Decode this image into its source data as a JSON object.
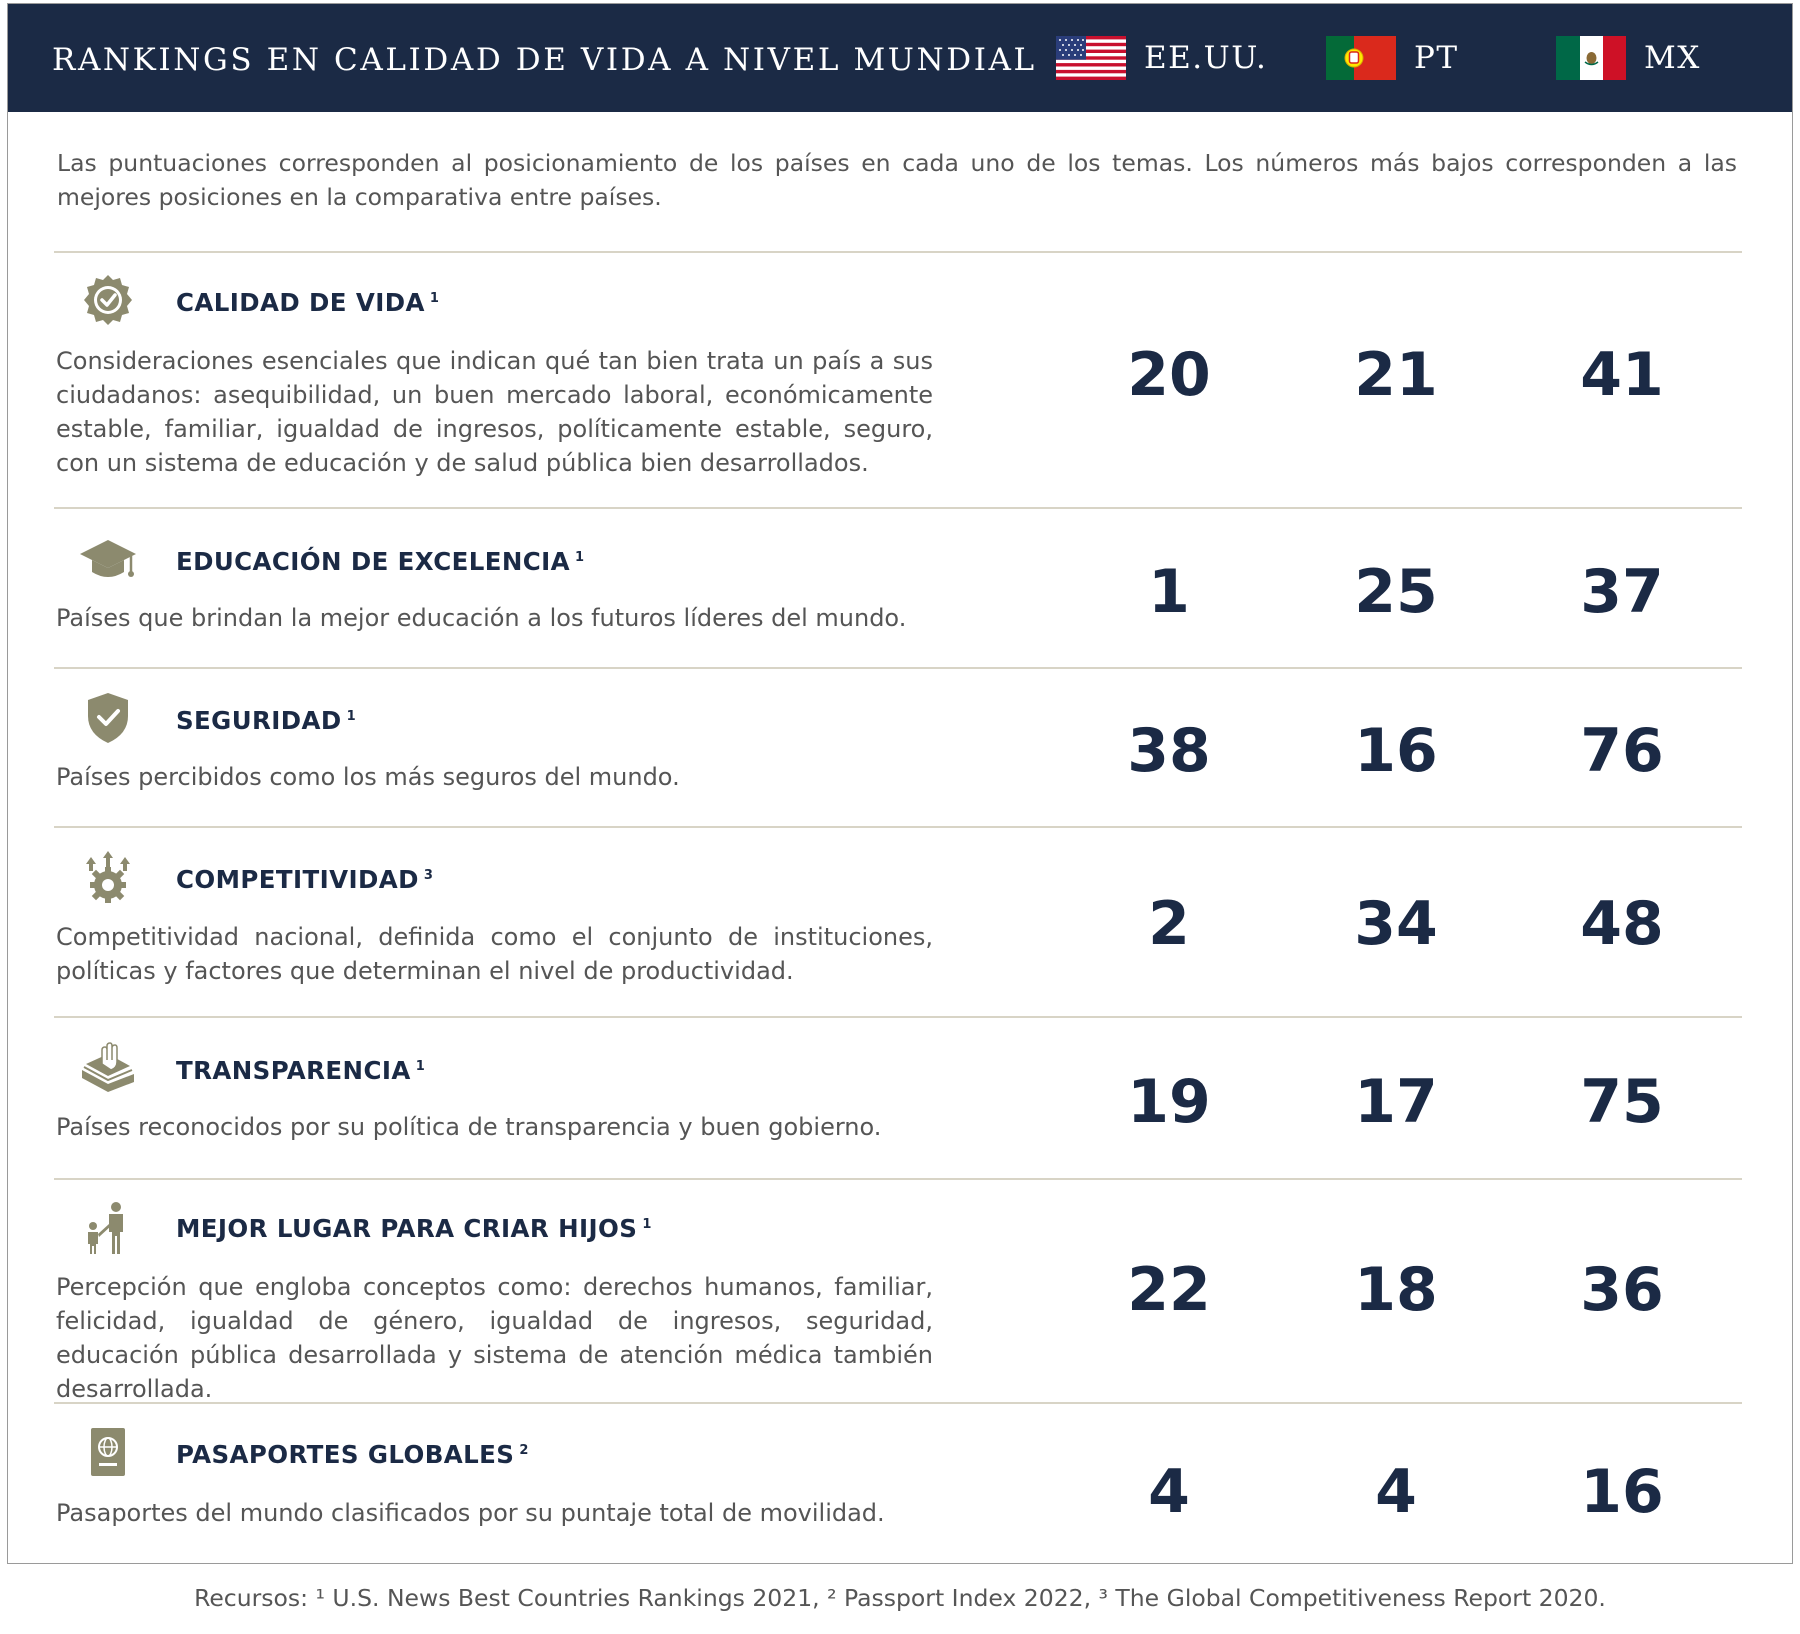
{
  "header": {
    "title": "RANKINGS EN CALIDAD DE VIDA A NIVEL MUNDIAL",
    "countries": [
      {
        "label": "EE.UU.",
        "flag": "us-flag-icon"
      },
      {
        "label": "PT",
        "flag": "portugal-flag-icon"
      },
      {
        "label": "MX",
        "flag": "mexico-flag-icon"
      }
    ]
  },
  "intro": "Las puntuaciones corresponden al posicionamiento de los países en cada uno de los temas. Los números más bajos corresponden a las mejores posiciones en la comparativa entre países.",
  "colors": {
    "navy": "#1b2a45",
    "icon": "#8c8a6e",
    "text": "#555555"
  },
  "rows": [
    {
      "icon": "badge-check-icon",
      "title": "CALIDAD DE VIDA",
      "sup": "1",
      "description": "Consideraciones esenciales que indican qué tan bien trata un país a sus ciudadanos: asequibilidad, un buen mercado laboral, económicamente estable, familiar, igualdad de ingresos, políticamente estable, seguro, con un sistema de educación y de salud pública bien desarrollados.",
      "us": "20",
      "pt": "21",
      "mx": "41"
    },
    {
      "icon": "graduation-cap-icon",
      "title": "EDUCACIÓN DE EXCELENCIA",
      "sup": "1",
      "description": "Países que brindan la mejor educación a los futuros líderes del mundo.",
      "us": "1",
      "pt": "25",
      "mx": "37"
    },
    {
      "icon": "shield-check-icon",
      "title": "SEGURIDAD",
      "sup": "1",
      "description": "Países percibidos como los más seguros del mundo.",
      "us": "38",
      "pt": "16",
      "mx": "76"
    },
    {
      "icon": "gear-arrows-icon",
      "title": "COMPETITIVIDAD",
      "sup": "3",
      "description": "Competitividad nacional, definida como el conjunto de instituciones, políticas y factores que determinan el nivel de productividad.",
      "us": "2",
      "pt": "34",
      "mx": "48"
    },
    {
      "icon": "hand-book-icon",
      "title": "TRANSPARENCIA",
      "sup": "1",
      "description": "Países reconocidos por su política de transparencia y buen gobierno.",
      "us": "19",
      "pt": "17",
      "mx": "75"
    },
    {
      "icon": "parent-child-icon",
      "title": "MEJOR LUGAR PARA CRIAR HIJOS",
      "sup": "1",
      "description": "Percepción que engloba conceptos como: derechos humanos, familiar, felicidad, igualdad de género, igualdad de ingresos, seguridad, educación pública desarrollada y sistema de atención médica también desarrollada.",
      "us": "22",
      "pt": "18",
      "mx": "36"
    },
    {
      "icon": "passport-icon",
      "title": "PASAPORTES GLOBALES",
      "sup": "2",
      "description": "Pasaportes del mundo clasificados por su puntaje total de movilidad.",
      "us": "4",
      "pt": "4",
      "mx": "16"
    }
  ],
  "footer": "Recursos: ¹ U.S. News Best Countries Rankings 2021, ² Passport Index 2022, ³ The Global Competitiveness Report 2020."
}
